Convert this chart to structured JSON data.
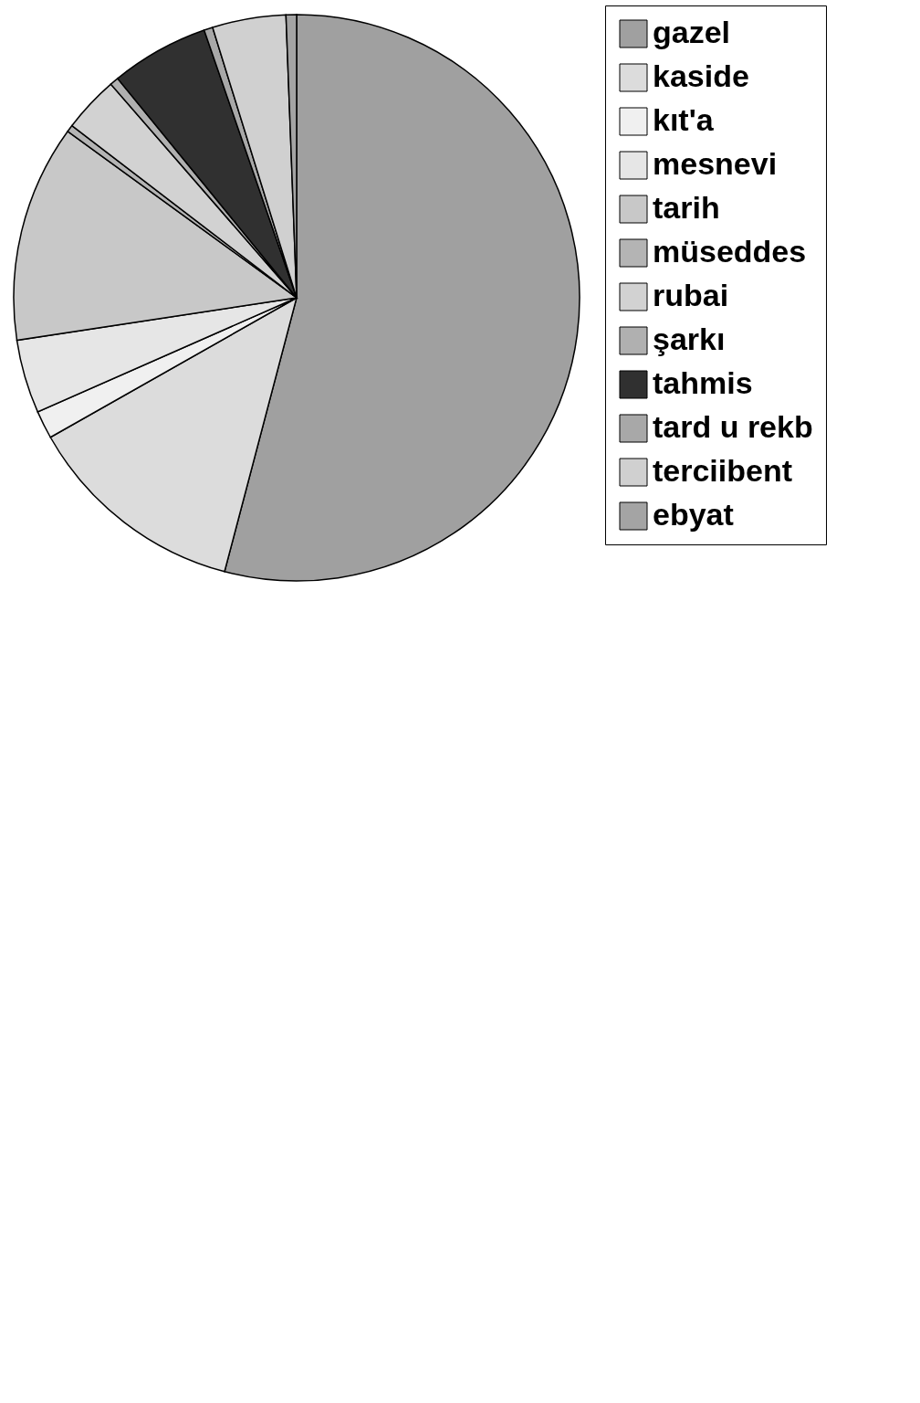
{
  "chart_data": {
    "type": "pie",
    "legend": "right",
    "categories": [
      "gazel",
      "kaside",
      "kıt'a",
      "mesnevi",
      "tarih",
      "müseddes",
      "rubai",
      "şarkı",
      "tahmis",
      "tard u rekb",
      "terciibent",
      "ebyat"
    ],
    "values": [
      54.1,
      12.7,
      1.6,
      4.2,
      12.4,
      0.4,
      3.2,
      0.5,
      5.6,
      0.5,
      4.2,
      0.6
    ],
    "colors": [
      "#a0a0a0",
      "#dcdcdc",
      "#f0f0f0",
      "#e6e6e6",
      "#c8c8c8",
      "#b4b4b4",
      "#d2d2d2",
      "#b0b0b0",
      "#303030",
      "#a8a8a8",
      "#d0d0d0",
      "#a4a4a4"
    ]
  }
}
